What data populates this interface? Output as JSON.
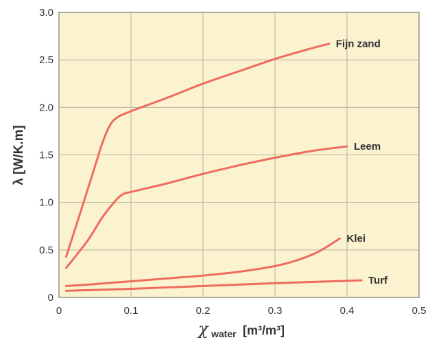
{
  "chart_data": {
    "type": "line",
    "xlabel_symbol": "χ",
    "xlabel_sub": "water",
    "xlabel_unit": "[m³/m³]",
    "ylabel": "λ [W/K.m]",
    "xlim": [
      0,
      0.5
    ],
    "ylim": [
      0,
      3.0
    ],
    "xticks": [
      "0",
      "0.1",
      "0.2",
      "0.3",
      "0.4",
      "0.5"
    ],
    "yticks": [
      "0",
      "0.5",
      "1.0",
      "1.5",
      "2.0",
      "2.5",
      "3.0"
    ],
    "grid": true,
    "colors": {
      "background": "#fbf3cf",
      "line": "#ef6b5e",
      "grid": "#b9b39a"
    },
    "series": [
      {
        "name": "Fijn zand",
        "points": [
          [
            0.01,
            0.43
          ],
          [
            0.03,
            0.9
          ],
          [
            0.05,
            1.38
          ],
          [
            0.06,
            1.62
          ],
          [
            0.07,
            1.8
          ],
          [
            0.08,
            1.89
          ],
          [
            0.1,
            1.96
          ],
          [
            0.15,
            2.1
          ],
          [
            0.2,
            2.25
          ],
          [
            0.25,
            2.38
          ],
          [
            0.3,
            2.51
          ],
          [
            0.35,
            2.62
          ],
          [
            0.375,
            2.67
          ]
        ]
      },
      {
        "name": "Leem",
        "points": [
          [
            0.01,
            0.31
          ],
          [
            0.04,
            0.6
          ],
          [
            0.06,
            0.84
          ],
          [
            0.08,
            1.03
          ],
          [
            0.09,
            1.09
          ],
          [
            0.1,
            1.11
          ],
          [
            0.15,
            1.2
          ],
          [
            0.2,
            1.3
          ],
          [
            0.25,
            1.39
          ],
          [
            0.3,
            1.47
          ],
          [
            0.35,
            1.54
          ],
          [
            0.4,
            1.59
          ]
        ]
      },
      {
        "name": "Klei",
        "points": [
          [
            0.01,
            0.12
          ],
          [
            0.05,
            0.14
          ],
          [
            0.1,
            0.17
          ],
          [
            0.15,
            0.2
          ],
          [
            0.2,
            0.23
          ],
          [
            0.25,
            0.27
          ],
          [
            0.3,
            0.33
          ],
          [
            0.33,
            0.39
          ],
          [
            0.36,
            0.48
          ],
          [
            0.39,
            0.62
          ]
        ]
      },
      {
        "name": "Turf",
        "points": [
          [
            0.01,
            0.07
          ],
          [
            0.1,
            0.09
          ],
          [
            0.2,
            0.12
          ],
          [
            0.3,
            0.15
          ],
          [
            0.38,
            0.17
          ],
          [
            0.42,
            0.18
          ]
        ]
      }
    ]
  }
}
